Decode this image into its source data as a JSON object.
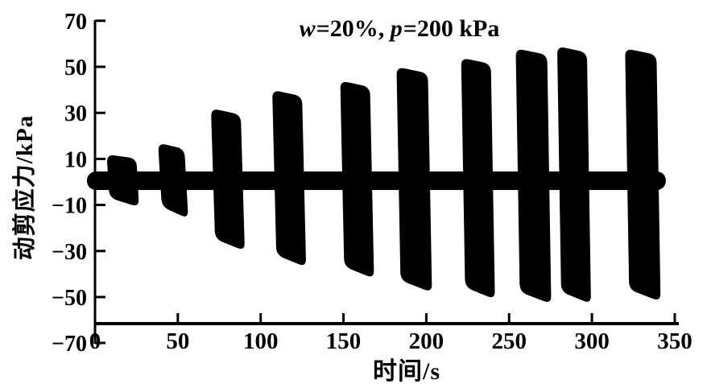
{
  "figure": {
    "annotation": {
      "w_var": "w",
      "w_rest": "=20%, ",
      "p_var": "p",
      "p_rest": "=200 kPa"
    },
    "y_axis_title": "动剪应力/kPa",
    "x_axis_title": "时间/s"
  },
  "chart_data": {
    "type": "scatter",
    "title": "w=20%, p=200 kPa",
    "xlabel": "时间/s",
    "ylabel": "动剪应力/kPa",
    "xlim": [
      0,
      350
    ],
    "ylim": [
      -70,
      70
    ],
    "grid": false,
    "legend": "none",
    "x_ticks": [
      0,
      50,
      100,
      150,
      200,
      250,
      300,
      350
    ],
    "x_tick_labels": [
      "0",
      "50",
      "100",
      "150",
      "200",
      "250",
      "300",
      "350"
    ],
    "y_ticks": [
      70,
      50,
      30,
      10,
      -10,
      -30,
      -50,
      -70
    ],
    "y_tick_labels": [
      "70",
      "50",
      "30",
      "10",
      "−10",
      "−30",
      "−50",
      "−70"
    ],
    "description": "Staged cyclic triaxial loading: dense black bursts of sinusoidal dynamic shear stress with step-wise increasing amplitude, connected by a thick near-zero baseline band",
    "baseline": {
      "t_start": 0,
      "t_end": 348,
      "band_kpa": 4
    },
    "bursts": [
      {
        "t_start": 7,
        "t_end": 25,
        "peak_pos": 12,
        "peak_neg": -11
      },
      {
        "t_start": 38,
        "t_end": 54,
        "peak_pos": 17,
        "peak_neg": -16
      },
      {
        "t_start": 70,
        "t_end": 88,
        "peak_pos": 32,
        "peak_neg": -30
      },
      {
        "t_start": 107,
        "t_end": 125,
        "peak_pos": 40,
        "peak_neg": -37
      },
      {
        "t_start": 148,
        "t_end": 166,
        "peak_pos": 44,
        "peak_neg": -42
      },
      {
        "t_start": 182,
        "t_end": 201,
        "peak_pos": 50,
        "peak_neg": -48
      },
      {
        "t_start": 221,
        "t_end": 239,
        "peak_pos": 54,
        "peak_neg": -51
      },
      {
        "t_start": 254,
        "t_end": 273,
        "peak_pos": 58,
        "peak_neg": -53
      },
      {
        "t_start": 279,
        "t_end": 297,
        "peak_pos": 59,
        "peak_neg": -53
      },
      {
        "t_start": 320,
        "t_end": 339,
        "peak_pos": 58,
        "peak_neg": -52
      }
    ],
    "colors": {
      "data": "#000000",
      "background": "#ffffff",
      "axis": "#000000"
    }
  }
}
